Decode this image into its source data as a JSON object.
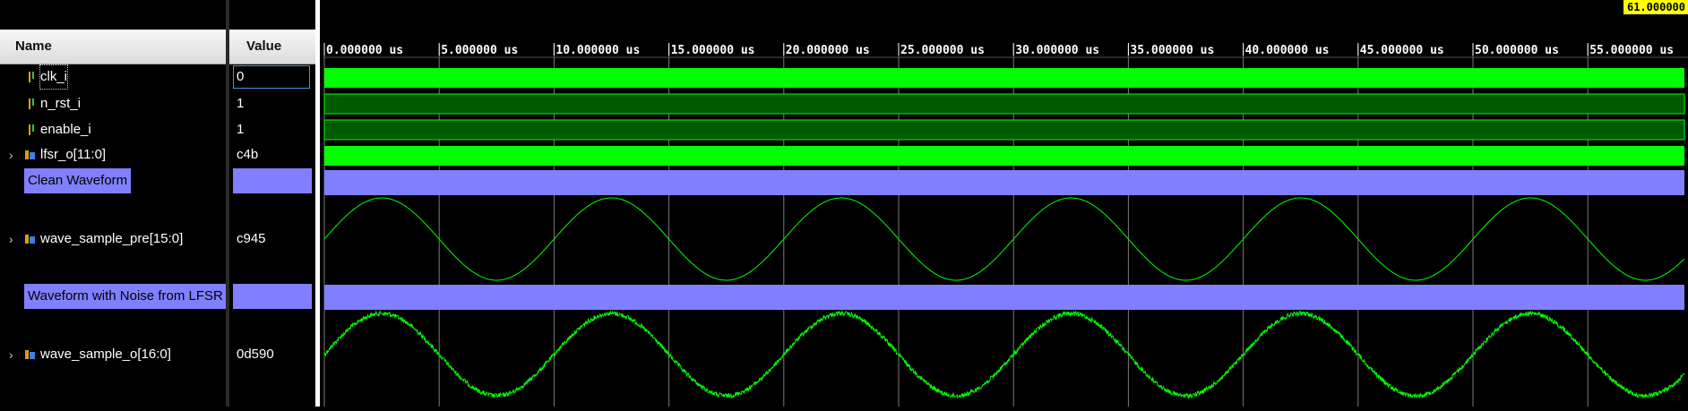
{
  "columns": {
    "name": "Name",
    "value": "Value"
  },
  "signals": [
    {
      "name": "clk_i",
      "value": "0",
      "icon": "bit-signal-icon",
      "expandable": false
    },
    {
      "name": "n_rst_i",
      "value": "1",
      "icon": "bit-signal-icon",
      "expandable": false
    },
    {
      "name": "enable_i",
      "value": "1",
      "icon": "bit-signal-icon",
      "expandable": false
    },
    {
      "name": "lfsr_o[11:0]",
      "value": "c4b",
      "icon": "bus-signal-icon",
      "expandable": true
    },
    {
      "name": "Clean Waveform",
      "value": "",
      "type": "group"
    },
    {
      "name": "wave_sample_pre[15:0]",
      "value": "c945",
      "icon": "bus-signal-icon",
      "expandable": true
    },
    {
      "name": "Waveform with Noise from LFSR",
      "value": "",
      "type": "group"
    },
    {
      "name": "wave_sample_o[16:0]",
      "value": "0d590",
      "icon": "bus-signal-icon",
      "expandable": true
    }
  ],
  "ruler": {
    "cursor_readout": "61.000000",
    "ticks": [
      "0.000000 us",
      "5.000000 us",
      "10.000000 us",
      "15.000000 us",
      "20.000000 us",
      "25.000000 us",
      "30.000000 us",
      "35.000000 us",
      "40.000000 us",
      "45.000000 us",
      "50.000000 us",
      "55.000000 us"
    ]
  },
  "time_axis": {
    "start_us": 0,
    "tick_step_us": 5,
    "visible_end_us": 59.2
  },
  "sine": {
    "period_us": 10,
    "pre_phase_note": "starts near mid-rising"
  },
  "colors": {
    "waveform": "#00ff00",
    "bus_fill": "#00ff00",
    "high_fill": "#005a00",
    "group_band": "#8080ff",
    "cursor_label_bg": "#ffff00",
    "grid": "#7a7a7a"
  }
}
